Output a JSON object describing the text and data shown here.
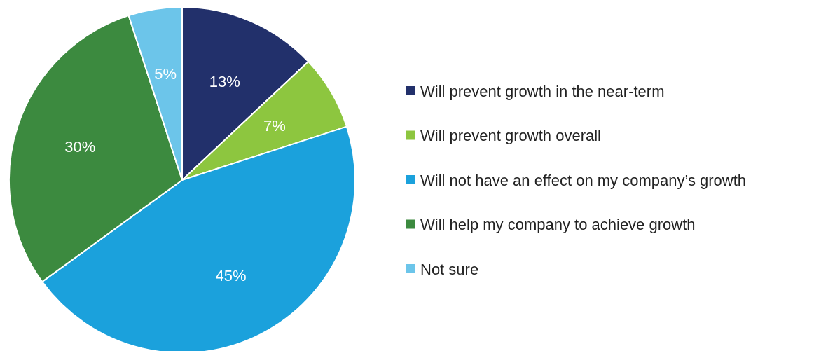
{
  "chart_data": {
    "type": "pie",
    "categories": [
      "Will prevent growth in the near-term",
      "Will prevent growth overall",
      "Will not have an effect on my company’s growth",
      "Will help my company to achieve growth",
      "Not sure"
    ],
    "values": [
      13,
      7,
      45,
      30,
      5
    ],
    "colors": [
      "#22306b",
      "#8dc63f",
      "#1ba1dc",
      "#3c8a3f",
      "#6cc5ea"
    ],
    "value_labels": [
      "13%",
      "7%",
      "45%",
      "30%",
      "5%"
    ],
    "legend": "right"
  }
}
